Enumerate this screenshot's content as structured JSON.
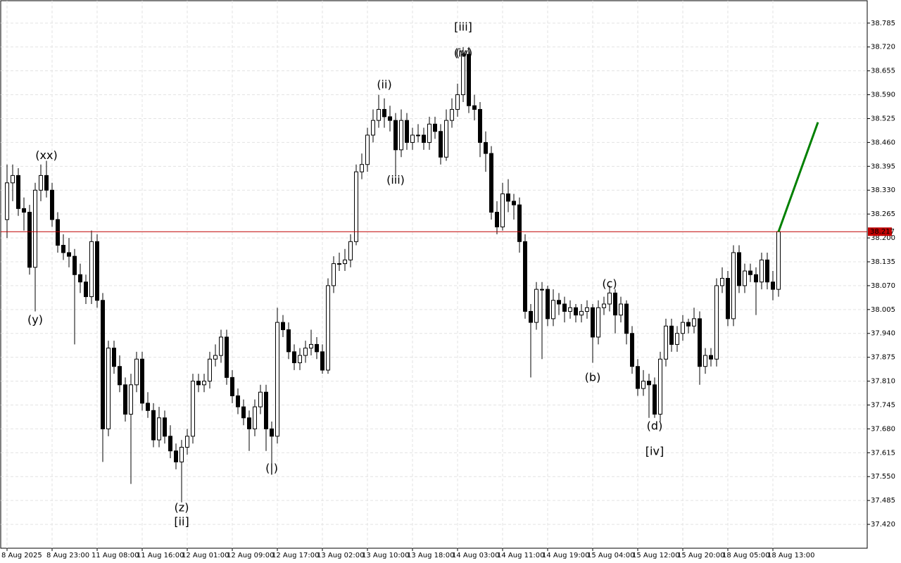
{
  "chart_data": {
    "type": "candlestick",
    "grid": true,
    "up_color": "#ffffff",
    "down_color": "#000000",
    "categories": [
      "8 Aug 2025",
      null,
      null,
      null,
      null,
      null,
      null,
      null,
      "8 Aug 23:00",
      null,
      null,
      null,
      null,
      null,
      null,
      null,
      "11 Aug 08:00",
      null,
      null,
      null,
      null,
      null,
      null,
      null,
      "11 Aug 16:00",
      null,
      null,
      null,
      null,
      null,
      null,
      null,
      "12 Aug 01:00",
      null,
      null,
      null,
      null,
      null,
      null,
      null,
      "12 Aug 09:00",
      null,
      null,
      null,
      null,
      null,
      null,
      null,
      "12 Aug 17:00",
      null,
      null,
      null,
      null,
      null,
      null,
      null,
      "13 Aug 02:00",
      null,
      null,
      null,
      null,
      null,
      null,
      null,
      "13 Aug 10:00",
      null,
      null,
      null,
      null,
      null,
      null,
      null,
      "13 Aug 18:00",
      null,
      null,
      null,
      null,
      null,
      null,
      null,
      "14 Aug 03:00",
      null,
      null,
      null,
      null,
      null,
      null,
      null,
      "14 Aug 11:00",
      null,
      null,
      null,
      null,
      null,
      null,
      null,
      "14 Aug 19:00",
      null,
      null,
      null,
      null,
      null,
      null,
      null,
      "15 Aug 04:00",
      null,
      null,
      null,
      null,
      null,
      null,
      null,
      "15 Aug 12:00",
      null,
      null,
      null,
      null,
      null,
      null,
      null,
      "15 Aug 20:00",
      null,
      null,
      null,
      null,
      null,
      null,
      null,
      "18 Aug 05:00",
      null,
      null,
      null,
      null,
      null,
      null,
      null,
      "18 Aug 13:00",
      null
    ],
    "candles": [
      [
        38.25,
        38.4,
        38.2,
        38.35
      ],
      [
        38.35,
        38.4,
        38.3,
        38.37
      ],
      [
        38.37,
        38.39,
        38.26,
        38.28
      ],
      [
        38.28,
        38.31,
        38.22,
        38.27
      ],
      [
        38.27,
        38.29,
        38.1,
        38.12
      ],
      [
        38.12,
        38.35,
        38.0,
        38.33
      ],
      [
        38.33,
        38.4,
        38.3,
        38.37
      ],
      [
        38.37,
        38.41,
        38.31,
        38.33
      ],
      [
        38.33,
        38.35,
        38.23,
        38.25
      ],
      [
        38.25,
        38.27,
        38.16,
        38.18
      ],
      [
        38.18,
        38.21,
        38.14,
        38.16
      ],
      [
        38.16,
        38.2,
        38.12,
        38.15
      ],
      [
        38.15,
        38.17,
        37.91,
        38.1
      ],
      [
        38.1,
        38.13,
        38.05,
        38.08
      ],
      [
        38.08,
        38.1,
        38.02,
        38.04
      ],
      [
        38.04,
        38.22,
        38.02,
        38.19
      ],
      [
        38.19,
        38.21,
        38.01,
        38.03
      ],
      [
        38.03,
        38.05,
        37.59,
        37.68
      ],
      [
        37.68,
        37.92,
        37.66,
        37.9
      ],
      [
        37.9,
        37.92,
        37.83,
        37.85
      ],
      [
        37.85,
        37.88,
        37.78,
        37.8
      ],
      [
        37.8,
        37.82,
        37.7,
        37.72
      ],
      [
        37.72,
        37.83,
        37.53,
        37.8
      ],
      [
        37.8,
        37.89,
        37.78,
        37.87
      ],
      [
        37.87,
        37.89,
        37.73,
        37.75
      ],
      [
        37.75,
        37.78,
        37.71,
        37.73
      ],
      [
        37.73,
        37.75,
        37.63,
        37.65
      ],
      [
        37.65,
        37.74,
        37.63,
        37.71
      ],
      [
        37.71,
        37.73,
        37.64,
        37.66
      ],
      [
        37.66,
        37.69,
        37.6,
        37.62
      ],
      [
        37.62,
        37.64,
        37.57,
        37.59
      ],
      [
        37.59,
        37.65,
        37.48,
        37.63
      ],
      [
        37.63,
        37.68,
        37.61,
        37.66
      ],
      [
        37.66,
        37.83,
        37.64,
        37.81
      ],
      [
        37.81,
        37.83,
        37.78,
        37.8
      ],
      [
        37.8,
        37.83,
        37.78,
        37.81
      ],
      [
        37.81,
        37.89,
        37.79,
        37.87
      ],
      [
        37.87,
        37.91,
        37.85,
        37.88
      ],
      [
        37.88,
        37.95,
        37.86,
        37.93
      ],
      [
        37.93,
        37.95,
        37.8,
        37.82
      ],
      [
        37.82,
        37.84,
        37.75,
        37.77
      ],
      [
        37.77,
        37.79,
        37.72,
        37.74
      ],
      [
        37.74,
        37.76,
        37.69,
        37.71
      ],
      [
        37.71,
        37.73,
        37.62,
        37.68
      ],
      [
        37.68,
        37.76,
        37.66,
        37.74
      ],
      [
        37.74,
        37.8,
        37.72,
        37.78
      ],
      [
        37.78,
        37.8,
        37.62,
        37.68
      ],
      [
        37.68,
        37.7,
        37.58,
        37.66
      ],
      [
        37.66,
        38.01,
        37.64,
        37.97
      ],
      [
        37.97,
        37.99,
        37.93,
        37.95
      ],
      [
        37.95,
        37.97,
        37.87,
        37.89
      ],
      [
        37.89,
        37.91,
        37.84,
        37.86
      ],
      [
        37.86,
        37.9,
        37.84,
        37.88
      ],
      [
        37.88,
        37.92,
        37.86,
        37.9
      ],
      [
        37.9,
        37.95,
        37.88,
        37.91
      ],
      [
        37.91,
        37.93,
        37.87,
        37.89
      ],
      [
        37.89,
        37.91,
        37.83,
        37.84
      ],
      [
        37.84,
        38.09,
        37.83,
        38.07
      ],
      [
        38.07,
        38.15,
        38.05,
        38.13
      ],
      [
        38.13,
        38.16,
        38.11,
        38.13
      ],
      [
        38.13,
        38.17,
        38.11,
        38.14
      ],
      [
        38.14,
        38.21,
        38.12,
        38.19
      ],
      [
        38.19,
        38.4,
        38.18,
        38.38
      ],
      [
        38.38,
        38.43,
        38.36,
        38.4
      ],
      [
        38.4,
        38.5,
        38.38,
        38.48
      ],
      [
        38.48,
        38.55,
        38.46,
        38.52
      ],
      [
        38.52,
        38.59,
        38.5,
        38.55
      ],
      [
        38.55,
        38.58,
        38.5,
        38.53
      ],
      [
        38.53,
        38.56,
        38.49,
        38.52
      ],
      [
        38.52,
        38.54,
        38.37,
        38.44
      ],
      [
        38.44,
        38.55,
        38.42,
        38.52
      ],
      [
        38.52,
        38.54,
        38.44,
        38.46
      ],
      [
        38.46,
        38.5,
        38.44,
        38.48
      ],
      [
        38.48,
        38.51,
        38.46,
        38.48
      ],
      [
        38.48,
        38.5,
        38.44,
        38.46
      ],
      [
        38.46,
        38.53,
        38.44,
        38.51
      ],
      [
        38.51,
        38.53,
        38.47,
        38.49
      ],
      [
        38.49,
        38.51,
        38.4,
        38.42
      ],
      [
        38.42,
        38.55,
        38.41,
        38.52
      ],
      [
        38.52,
        38.58,
        38.5,
        38.55
      ],
      [
        38.55,
        38.62,
        38.53,
        38.59
      ],
      [
        38.59,
        38.72,
        38.57,
        38.7
      ],
      [
        38.7,
        38.72,
        38.54,
        38.56
      ],
      [
        38.56,
        38.59,
        38.52,
        38.55
      ],
      [
        38.55,
        38.57,
        38.42,
        38.46
      ],
      [
        38.46,
        38.49,
        38.38,
        38.43
      ],
      [
        38.43,
        38.45,
        38.25,
        38.27
      ],
      [
        38.27,
        38.3,
        38.21,
        38.23
      ],
      [
        38.23,
        38.35,
        38.22,
        38.32
      ],
      [
        38.32,
        38.36,
        38.27,
        38.3
      ],
      [
        38.3,
        38.32,
        38.25,
        38.29
      ],
      [
        38.29,
        38.31,
        38.16,
        38.19
      ],
      [
        38.19,
        38.21,
        37.98,
        38.0
      ],
      [
        38.0,
        38.02,
        37.82,
        37.97
      ],
      [
        37.97,
        38.08,
        37.95,
        38.06
      ],
      [
        38.06,
        38.08,
        37.87,
        38.06
      ],
      [
        38.06,
        38.07,
        37.96,
        37.98
      ],
      [
        37.98,
        38.06,
        37.96,
        38.03
      ],
      [
        38.03,
        38.05,
        37.99,
        38.02
      ],
      [
        38.02,
        38.04,
        37.97,
        38.0
      ],
      [
        38.0,
        38.03,
        37.98,
        38.01
      ],
      [
        38.01,
        38.02,
        37.97,
        37.99
      ],
      [
        37.99,
        38.02,
        37.97,
        38.0
      ],
      [
        38.0,
        38.03,
        37.98,
        38.01
      ],
      [
        38.01,
        38.02,
        37.86,
        37.93
      ],
      [
        37.93,
        38.03,
        37.91,
        38.01
      ],
      [
        38.01,
        38.04,
        37.99,
        38.02
      ],
      [
        38.02,
        38.07,
        38.0,
        38.05
      ],
      [
        38.05,
        38.06,
        37.94,
        37.99
      ],
      [
        37.99,
        38.04,
        37.97,
        38.02
      ],
      [
        38.02,
        38.03,
        37.91,
        37.94
      ],
      [
        37.94,
        37.96,
        37.83,
        37.85
      ],
      [
        37.85,
        37.87,
        37.77,
        37.79
      ],
      [
        37.79,
        37.84,
        37.77,
        37.81
      ],
      [
        37.81,
        37.83,
        37.71,
        37.8
      ],
      [
        37.8,
        37.82,
        37.71,
        37.72
      ],
      [
        37.72,
        37.89,
        37.7,
        37.87
      ],
      [
        37.87,
        37.98,
        37.85,
        37.96
      ],
      [
        37.96,
        37.98,
        37.89,
        37.91
      ],
      [
        37.91,
        37.96,
        37.89,
        37.94
      ],
      [
        37.94,
        37.99,
        37.92,
        37.97
      ],
      [
        37.97,
        37.98,
        37.94,
        37.96
      ],
      [
        37.96,
        38.01,
        37.94,
        37.98
      ],
      [
        37.98,
        38.0,
        37.8,
        37.85
      ],
      [
        37.85,
        37.9,
        37.83,
        37.88
      ],
      [
        37.88,
        37.9,
        37.85,
        37.87
      ],
      [
        37.87,
        38.09,
        37.85,
        38.07
      ],
      [
        38.07,
        38.12,
        38.05,
        38.09
      ],
      [
        38.09,
        38.11,
        37.96,
        37.98
      ],
      [
        37.98,
        38.18,
        37.96,
        38.16
      ],
      [
        38.16,
        38.18,
        38.05,
        38.07
      ],
      [
        38.07,
        38.13,
        38.05,
        38.11
      ],
      [
        38.11,
        38.13,
        38.08,
        38.1
      ],
      [
        38.1,
        38.12,
        37.99,
        38.08
      ],
      [
        38.08,
        38.16,
        38.06,
        38.14
      ],
      [
        38.14,
        38.16,
        38.06,
        38.08
      ],
      [
        38.08,
        38.11,
        38.03,
        38.06
      ],
      [
        38.06,
        38.22,
        38.04,
        38.217
      ]
    ],
    "ylim": [
      37.355,
      38.846
    ],
    "yticks": [
      {
        "value": 38.785,
        "label": "38.785"
      },
      {
        "value": 38.72,
        "label": "38.720"
      },
      {
        "value": 38.655,
        "label": "38.655"
      },
      {
        "value": 38.59,
        "label": "38.590"
      },
      {
        "value": 38.525,
        "label": "38.525"
      },
      {
        "value": 38.46,
        "label": "38.460"
      },
      {
        "value": 38.395,
        "label": "38.395"
      },
      {
        "value": 38.33,
        "label": "38.330"
      },
      {
        "value": 38.265,
        "label": "38.265"
      },
      {
        "value": 38.2,
        "label": "38.200"
      },
      {
        "value": 38.135,
        "label": "38.135"
      },
      {
        "value": 38.07,
        "label": "38.070"
      },
      {
        "value": 38.005,
        "label": "38.005"
      },
      {
        "value": 37.94,
        "label": "37.940"
      },
      {
        "value": 37.875,
        "label": "37.875"
      },
      {
        "value": 37.81,
        "label": "37.810"
      },
      {
        "value": 37.745,
        "label": "37.745"
      },
      {
        "value": 37.68,
        "label": "37.680"
      },
      {
        "value": 37.615,
        "label": "37.615"
      },
      {
        "value": 37.55,
        "label": "37.550"
      },
      {
        "value": 37.485,
        "label": "37.485"
      },
      {
        "value": 37.42,
        "label": "37.420"
      }
    ],
    "last_price": {
      "value": 38.217,
      "color": "#c00000"
    },
    "projection": {
      "x": [
        137,
        144
      ],
      "values": [
        38.217,
        38.515
      ],
      "color": "#008000"
    },
    "annotations": [
      {
        "text": "(xx)",
        "x": 7,
        "y": 38.423,
        "color": "#1a1adc"
      },
      {
        "text": "(y)",
        "x": 5,
        "y": 37.976,
        "color": "#1a1adc"
      },
      {
        "text": "(z)",
        "x": 31,
        "y": 37.464,
        "color": "#1a1adc"
      },
      {
        "text": "[ii]",
        "x": 31,
        "y": 37.426,
        "color": "#33cc33"
      },
      {
        "text": "(|)",
        "x": 47,
        "y": 37.572,
        "color": "#1a1adc"
      },
      {
        "text": "(ii)",
        "x": 67,
        "y": 38.616,
        "color": "#1a1adc"
      },
      {
        "text": "(iii)",
        "x": 69,
        "y": 38.356,
        "color": "#1a1adc"
      },
      {
        "text": "[iii]",
        "x": 81,
        "y": 38.773,
        "color": "#33cc33"
      },
      {
        "text": "(iv)",
        "x": 81,
        "y": 38.702,
        "color": "#1a1adc"
      },
      {
        "text": "(v)",
        "x": 81,
        "y": 38.702,
        "color": "#1a1adc"
      },
      {
        "text": "(c)",
        "x": 107,
        "y": 38.074,
        "color": "#1a1adc"
      },
      {
        "text": "(b)",
        "x": 104,
        "y": 37.819,
        "color": "#1a1adc"
      },
      {
        "text": "(d)",
        "x": 115,
        "y": 37.687,
        "color": "#1a1adc"
      },
      {
        "text": "[iv]",
        "x": 115,
        "y": 37.618,
        "color": "#33cc33"
      }
    ]
  }
}
